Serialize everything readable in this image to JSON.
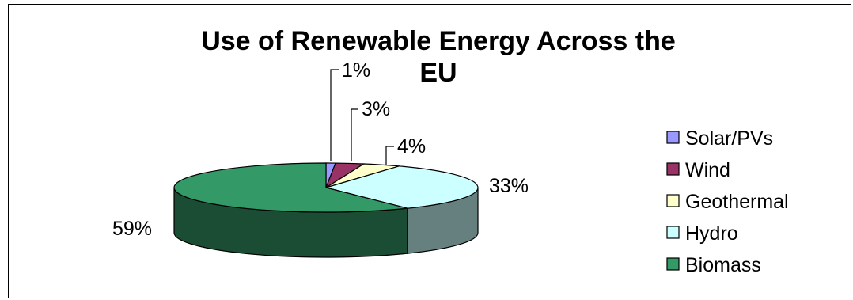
{
  "chart_data": {
    "type": "pie",
    "title": "Use of Renewable Energy Across the EU",
    "categories": [
      "Solar/PVs",
      "Wind",
      "Geothermal",
      "Hydro",
      "Biomass"
    ],
    "values": [
      1,
      3,
      4,
      33,
      59
    ],
    "data_labels": [
      "1%",
      "3%",
      "4%",
      "33%",
      "59%"
    ],
    "colors": [
      "#9999ff",
      "#993366",
      "#ffffcc",
      "#ccffff",
      "#339966"
    ],
    "style": "3d-pie",
    "legend_position": "right"
  }
}
